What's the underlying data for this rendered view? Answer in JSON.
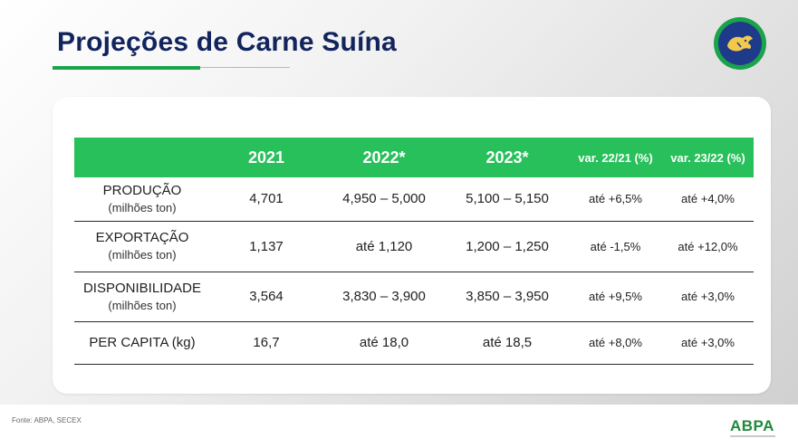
{
  "title": "Projeções de Carne Suína",
  "table": {
    "headers": [
      "",
      "2021",
      "2022*",
      "2023*",
      "var. 22/21 (%)",
      "var. 23/22 (%)"
    ],
    "rows": [
      {
        "label": "PRODUÇÃO",
        "sublabel": "(milhões ton)",
        "y2021": "4,701",
        "y2022": "4,950 – 5,000",
        "y2023": "5,100 – 5,150",
        "var1": "até +6,5%",
        "var2": "até +4,0%"
      },
      {
        "label": "EXPORTAÇÃO",
        "sublabel": "(milhões ton)",
        "y2021": "1,137",
        "y2022": "até 1,120",
        "y2023": "1,200 – 1,250",
        "var1": "até -1,5%",
        "var2": "até +12,0%"
      },
      {
        "label": "DISPONIBILIDADE",
        "sublabel": "(milhões ton)",
        "y2021": "3,564",
        "y2022": "3,830 – 3,900",
        "y2023": "3,850 – 3,950",
        "var1": "até +9,5%",
        "var2": "até +3,0%"
      },
      {
        "label": "PER CAPITA (kg)",
        "sublabel": "",
        "y2021": "16,7",
        "y2022": "até 18,0",
        "y2023": "até 18,5",
        "var1": "até +8,0%",
        "var2": "até +3,0%"
      }
    ]
  },
  "footer": {
    "source": "Fonte: ABPA, SECEX",
    "brand": "ABPA"
  },
  "colors": {
    "title": "#12245e",
    "accent_green": "#1aa34a",
    "header_green": "#27c05a",
    "negative_red": "#d42b2b",
    "logo_blue": "#1e3a8a"
  },
  "icons": {
    "logo": "pig-emblem-icon"
  }
}
